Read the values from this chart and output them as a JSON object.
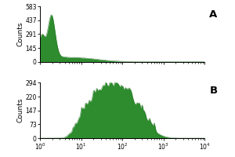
{
  "panel_A": {
    "label": "A",
    "yticks": [
      0,
      145,
      291,
      437,
      583
    ],
    "ymax": 583,
    "color_fill": "#2e8b2e",
    "color_edge": "#1a6b1a"
  },
  "panel_B": {
    "label": "B",
    "yticks": [
      0,
      73,
      147,
      220,
      294
    ],
    "ymax": 294,
    "color_fill": "#2e8b2e",
    "color_edge": "#1a6b1a"
  },
  "xmin": 1,
  "xmax": 10000,
  "xtick_vals": [
    1,
    10,
    100,
    1000,
    10000
  ],
  "background": "#ffffff",
  "tick_fontsize": 5.5,
  "label_fontsize": 6.5
}
